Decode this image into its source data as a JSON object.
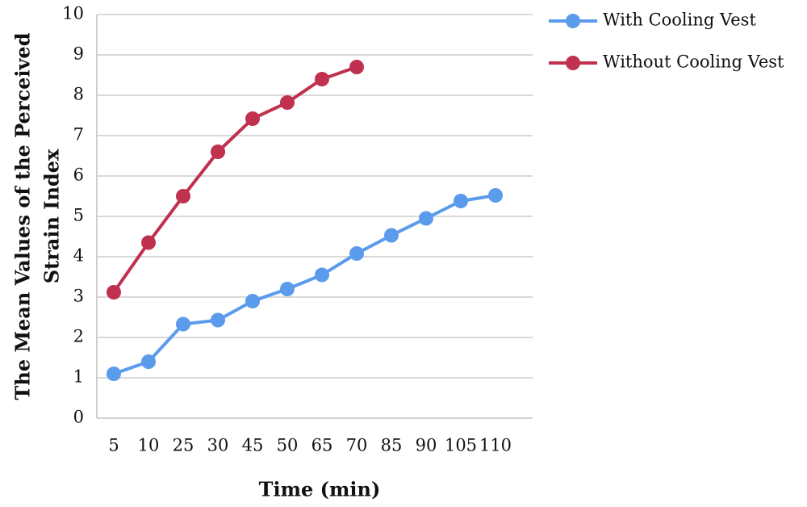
{
  "chart_data": {
    "type": "line",
    "xlabel": "Time (min)",
    "ylabel": [
      "The Mean Values of the Perceived",
      "Strain Index"
    ],
    "categories": [
      "5",
      "10",
      "25",
      "30",
      "45",
      "50",
      "65",
      "70",
      "85",
      "90",
      "105",
      "110"
    ],
    "series": [
      {
        "name": "With Cooling Vest",
        "color": "#5b9bec",
        "values": [
          1.1,
          1.4,
          2.33,
          2.43,
          2.9,
          3.2,
          3.55,
          4.08,
          4.53,
          4.95,
          5.38,
          5.52
        ]
      },
      {
        "name": "Without Cooling Vest",
        "color": "#c0304f",
        "values": [
          3.12,
          4.35,
          5.5,
          6.6,
          7.42,
          7.82,
          8.4,
          8.7,
          null,
          null,
          null,
          null
        ]
      }
    ],
    "ylim": [
      0,
      10
    ],
    "yticks": [
      0,
      1,
      2,
      3,
      4,
      5,
      6,
      7,
      8,
      9,
      10
    ],
    "grid": true,
    "legend": "top-right"
  }
}
